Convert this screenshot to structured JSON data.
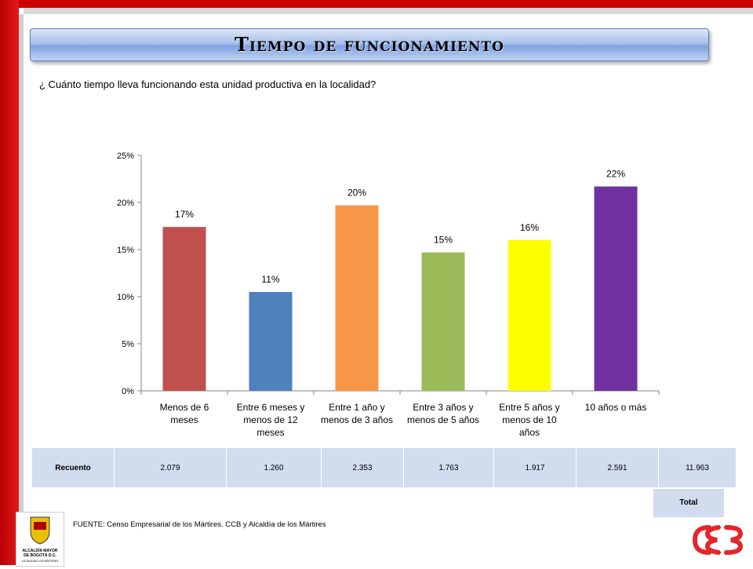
{
  "slide": {
    "title": "Tiempo de funcionamiento",
    "question": "¿ Cuánto tiempo lleva funcionando esta unidad productiva en la localidad?",
    "source": "FUENTE:  Censo Empresarial de los Mártires. CCB y Alcaldía de los Mártires",
    "colors": {
      "frame_red": "#cc0000",
      "title_blue": "#7fa1e0",
      "table_fill": "#d1dcef"
    }
  },
  "chart_data": {
    "type": "bar",
    "title": "",
    "xlabel": "",
    "ylabel": "",
    "ylim": [
      0,
      0.25
    ],
    "yticks": [
      "0%",
      "5%",
      "10%",
      "15%",
      "20%",
      "25%"
    ],
    "grid": false,
    "categories": [
      [
        "Menos de 6",
        "meses"
      ],
      [
        "Entre 6 meses y",
        "menos de 12",
        "meses"
      ],
      [
        "Entre 1 año y",
        "menos de 3 años"
      ],
      [
        "Entre 3 años y",
        "menos de 5 años"
      ],
      [
        "Entre 5 años y",
        "menos de 10",
        "años"
      ],
      [
        "10 años o más"
      ]
    ],
    "values": [
      0.174,
      0.105,
      0.197,
      0.147,
      0.16,
      0.217
    ],
    "data_labels": [
      "17%",
      "11%",
      "20%",
      "15%",
      "16%",
      "22%"
    ],
    "colors": [
      "#c0504d",
      "#4f81bd",
      "#f79646",
      "#9bbb59",
      "#ffff00",
      "#7030a0"
    ]
  },
  "table": {
    "row_label": "Recuento",
    "values": [
      "2.079",
      "1.260",
      "2.353",
      "1.763",
      "1.917",
      "2.591",
      "11.963"
    ],
    "total_label": "Total"
  },
  "logos": {
    "left": "Alcaldía Mayor de Bogotá D.C. Localidad Los Mártires",
    "right": "CCB"
  }
}
